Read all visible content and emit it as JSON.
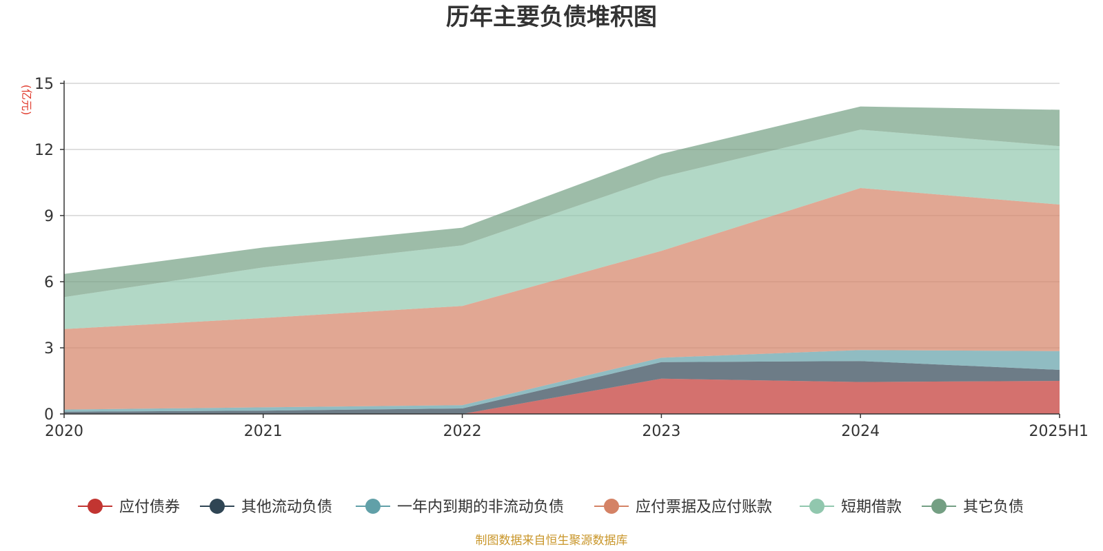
{
  "chart_data": {
    "type": "area",
    "stacked": true,
    "title": "历年主要负债堆积图",
    "y_unit": "(亿元)",
    "x": [
      "2020",
      "2021",
      "2022",
      "2023",
      "2024",
      "2025H1"
    ],
    "ylim": [
      0,
      15
    ],
    "yticks": [
      "0",
      "3",
      "6",
      "9",
      "12",
      "15"
    ],
    "grid": true,
    "legend_position": "bottom",
    "series": [
      {
        "name": "应付债券",
        "color": "#c23531",
        "values": [
          0,
          0,
          0,
          1.6,
          1.45,
          1.5
        ]
      },
      {
        "name": "其他流动负债",
        "color": "#2f4554",
        "values": [
          0.1,
          0.15,
          0.25,
          0.75,
          0.95,
          0.5
        ]
      },
      {
        "name": "一年内到期的非流动负债",
        "color": "#61a0a8",
        "values": [
          0.1,
          0.15,
          0.15,
          0.2,
          0.5,
          0.85
        ]
      },
      {
        "name": "应付票据及应付账款",
        "color": "#d48265",
        "values": [
          3.65,
          4.05,
          4.5,
          4.85,
          7.35,
          6.65
        ]
      },
      {
        "name": "短期借款",
        "color": "#91c7ae",
        "values": [
          1.45,
          2.3,
          2.75,
          3.35,
          2.65,
          2.65
        ]
      },
      {
        "name": "其它负债",
        "color": "#749f83",
        "values": [
          1.05,
          0.9,
          0.8,
          1.05,
          1.05,
          1.65
        ]
      }
    ]
  },
  "source": "制图数据来自恒生聚源数据库"
}
